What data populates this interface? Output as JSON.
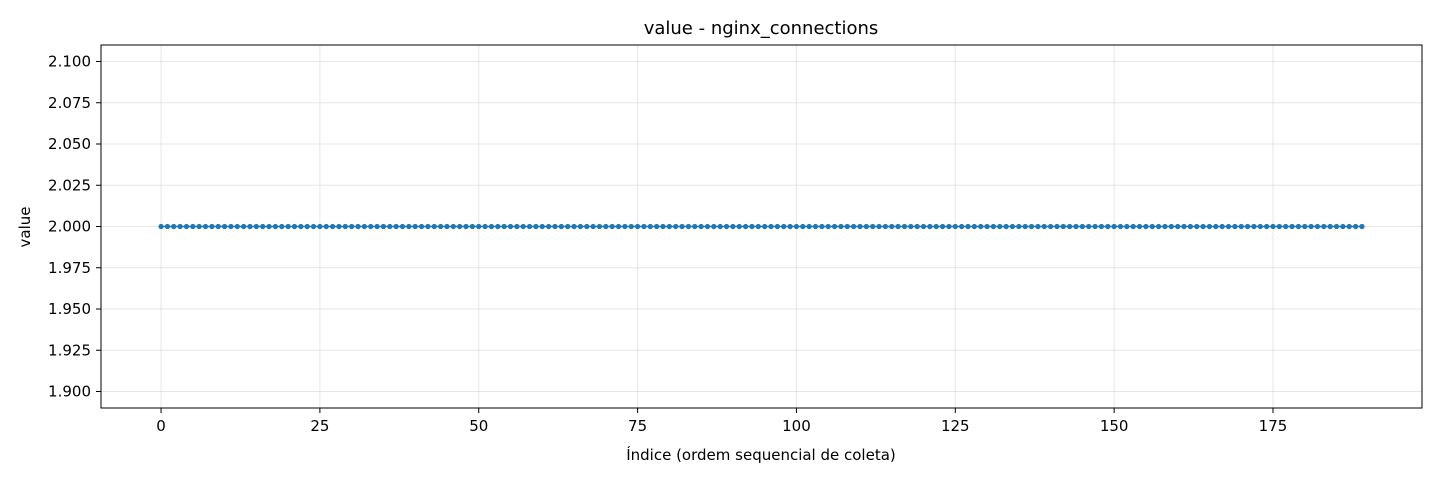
{
  "chart_data": {
    "type": "line",
    "title": "value - nginx_connections",
    "xlabel": "Índice (ordem sequencial de coleta)",
    "ylabel": "value",
    "xlim": [
      -9.45,
      198.45
    ],
    "ylim": [
      1.89,
      2.11
    ],
    "xticks": [
      0,
      25,
      50,
      75,
      100,
      125,
      150,
      175
    ],
    "yticks": [
      1.9,
      1.925,
      1.95,
      1.975,
      2.0,
      2.025,
      2.05,
      2.075,
      2.1
    ],
    "ytick_labels": [
      "1.900",
      "1.925",
      "1.950",
      "1.975",
      "2.000",
      "2.025",
      "2.050",
      "2.075",
      "2.100"
    ],
    "grid": true,
    "legend": "none",
    "series": [
      {
        "color": "#1f77b4",
        "marker": "circle",
        "x_start": 0,
        "x_end": 189,
        "x_step": 1,
        "constant_value": 2.0
      }
    ]
  }
}
